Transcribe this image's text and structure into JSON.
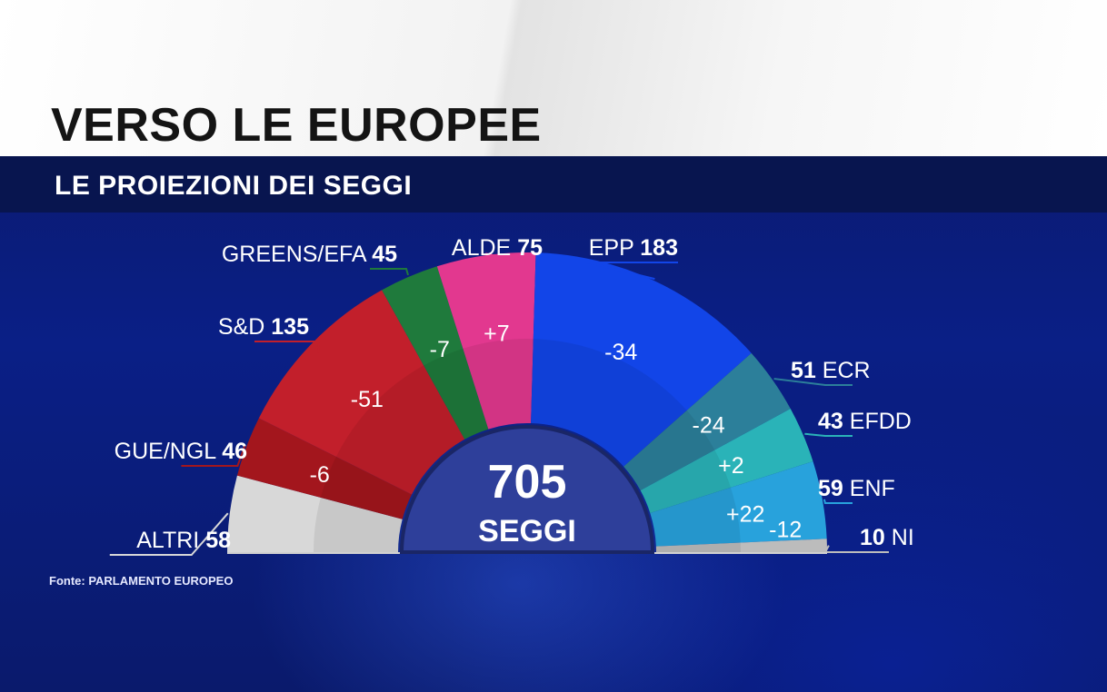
{
  "header": {
    "title": "VERSO LE EUROPEE",
    "subtitle": "LE PROIEZIONI DEI SEGGI"
  },
  "source": "Fonte: PARLAMENTO EUROPEO",
  "chart_data": {
    "type": "pie",
    "variant": "parliament-semicircle",
    "title": "VERSO LE EUROPEE",
    "subtitle": "LE PROIEZIONI DEI SEGGI",
    "total": {
      "value": "705",
      "label": "SEGGI"
    },
    "categories": [
      "ALTRI",
      "GUE/NGL",
      "S&D",
      "GREENS/EFA",
      "ALDE",
      "EPP",
      "ECR",
      "EFDD",
      "ENF",
      "NI"
    ],
    "values": [
      58,
      46,
      135,
      45,
      75,
      183,
      51,
      43,
      59,
      10
    ],
    "changes": [
      "",
      "-6",
      "-51",
      "-7",
      "+7",
      "-34",
      "-24",
      "+2",
      "+22",
      "-12"
    ],
    "colors": [
      "#d8d8d8",
      "#a3161d",
      "#c21f2b",
      "#1f7a3c",
      "#e2388f",
      "#1245e8",
      "#2c7f9a",
      "#2ab3b8",
      "#28a2dc",
      "#bcbcbc"
    ],
    "label_side": [
      "left",
      "left",
      "left",
      "left",
      "left",
      "left",
      "right",
      "right",
      "right",
      "right"
    ],
    "source": "Fonte: PARLAMENTO EUROPEO"
  }
}
